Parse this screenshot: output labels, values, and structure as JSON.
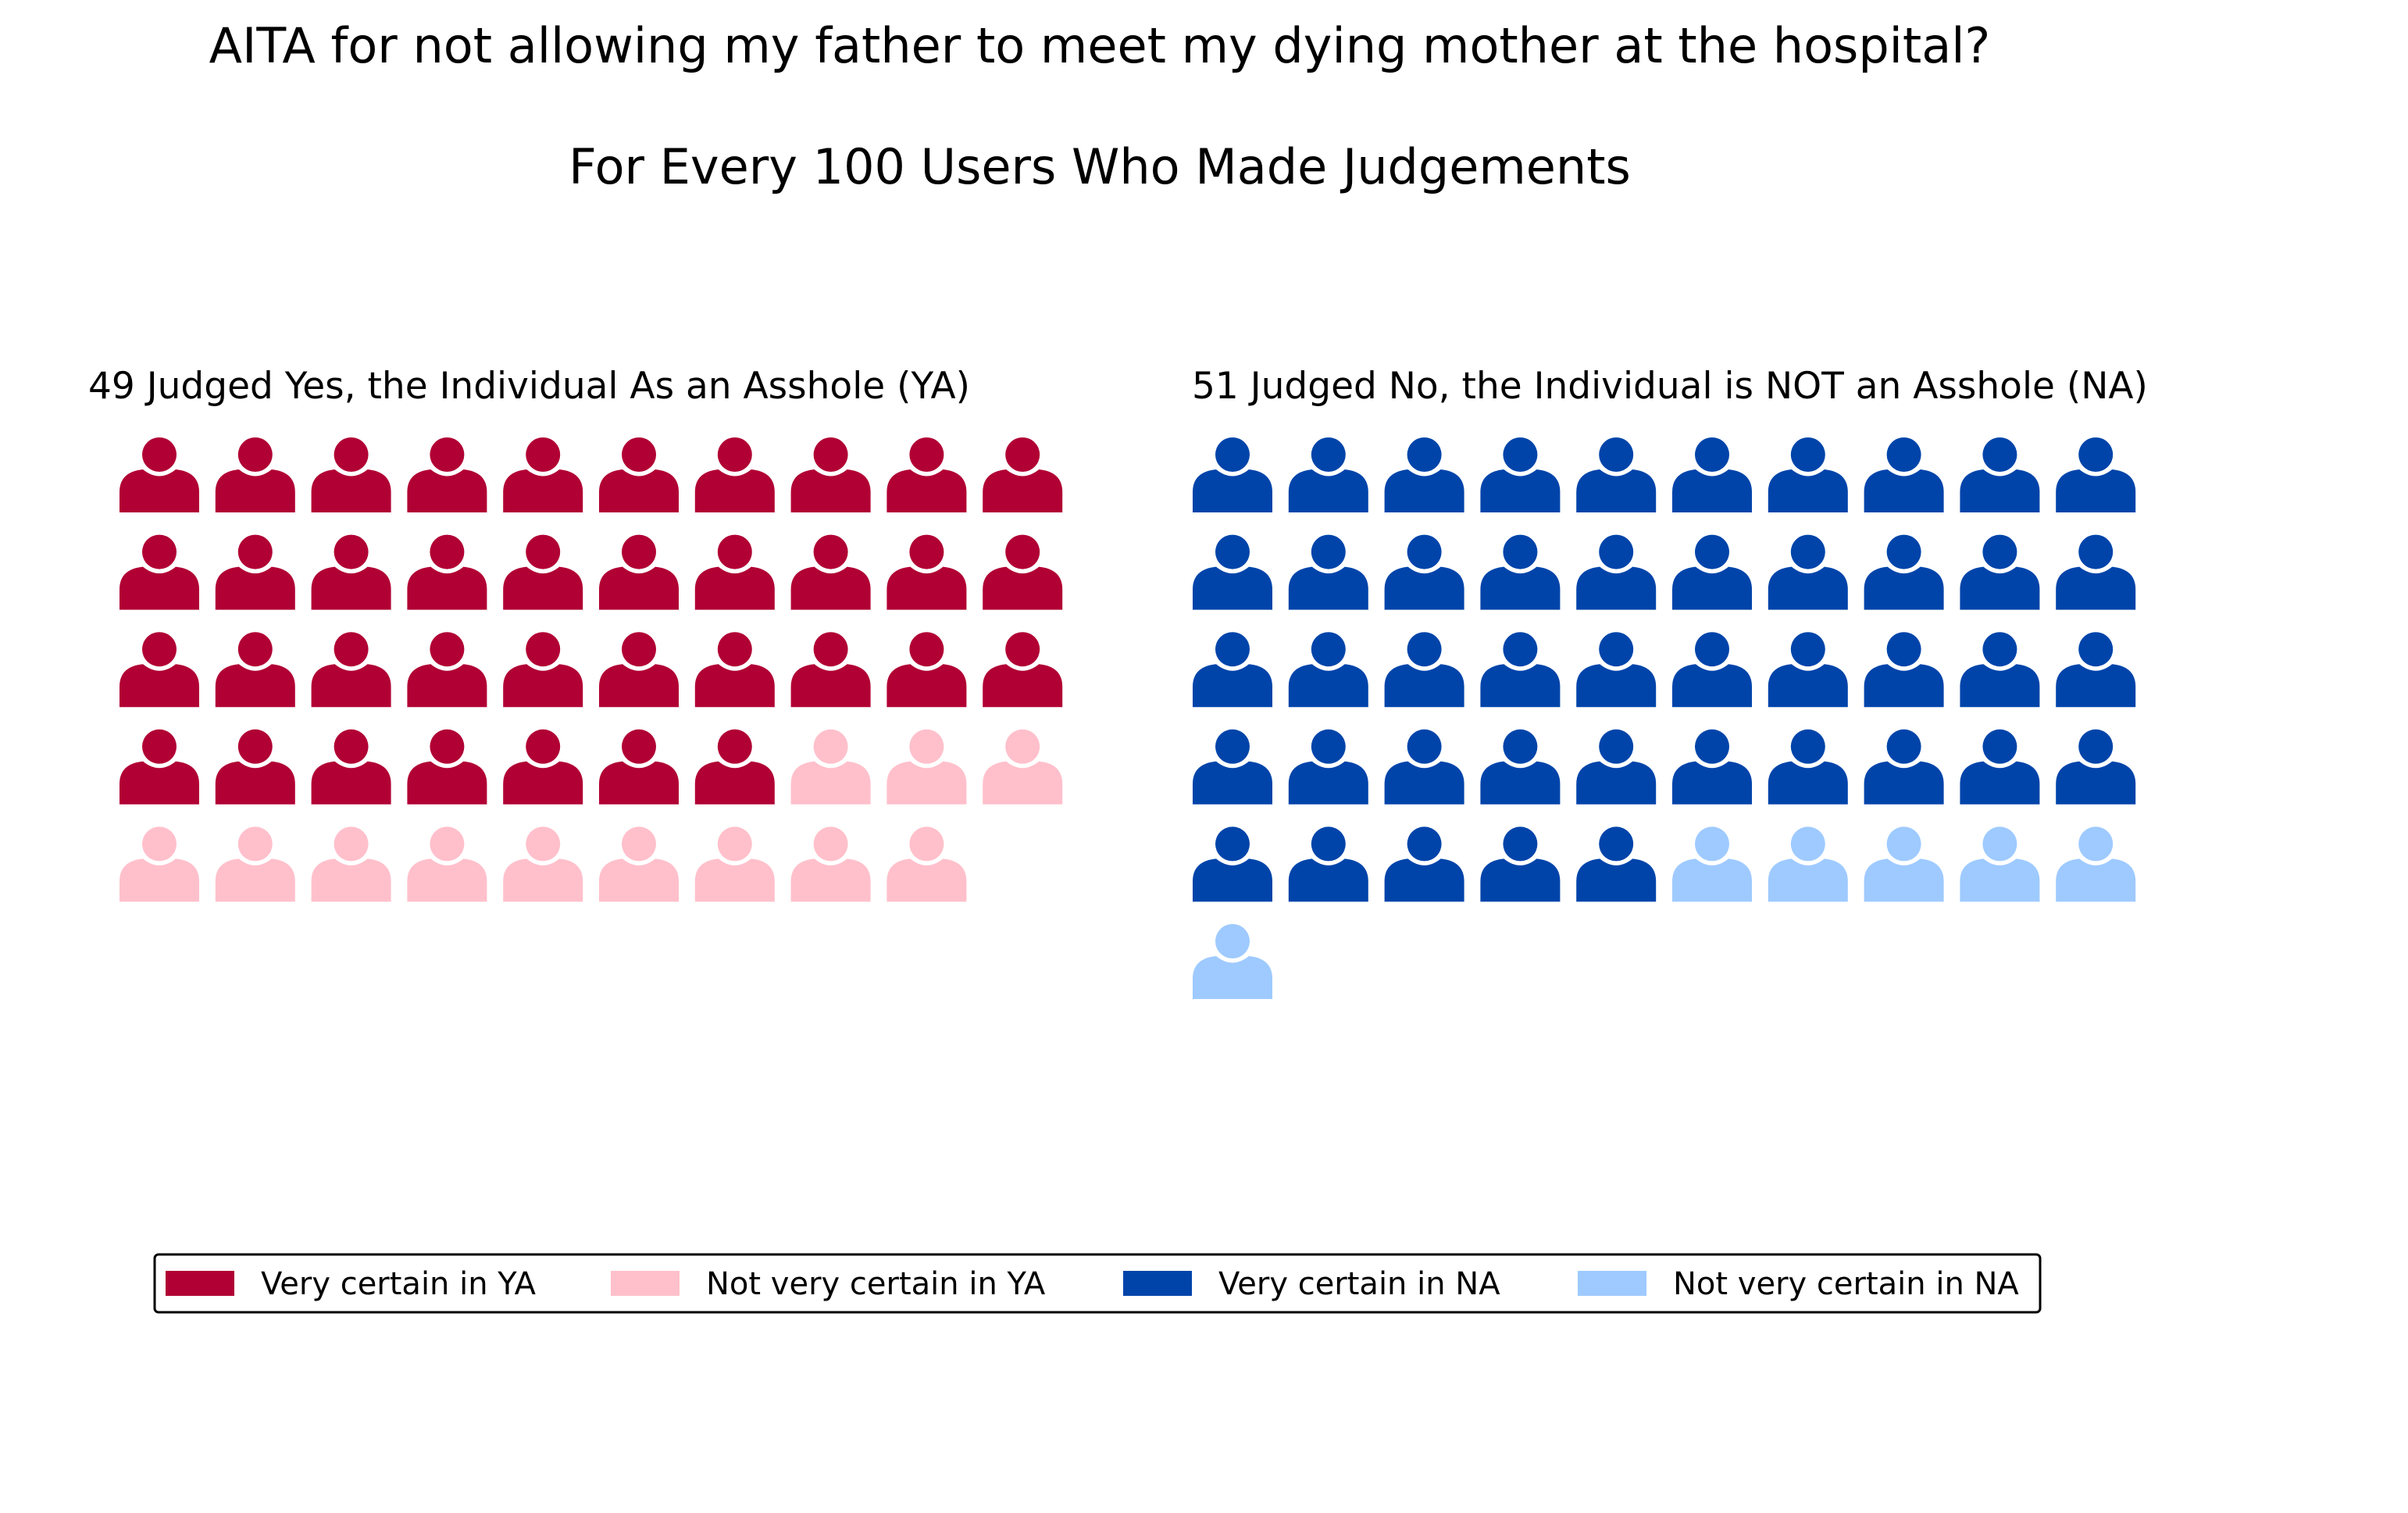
{
  "chart_data": {
    "type": "pictograph",
    "title": "AITA for not allowing my father to meet my dying mother at the hospital?",
    "subtitle": "For Every 100 Users Who Made Judgements",
    "icon": "person-icon",
    "icons_per_row": 10,
    "panels": [
      {
        "id": "ya",
        "title": "49 Judged Yes, the Individual As an Asshole (YA)",
        "groups": [
          {
            "label": "Very certain in YA",
            "count": 37,
            "color": "#b10034"
          },
          {
            "label": "Not very certain in YA",
            "count": 12,
            "color": "#ffc0cb"
          }
        ]
      },
      {
        "id": "na",
        "title": "51 Judged No, the Individual is NOT an Asshole (NA)",
        "groups": [
          {
            "label": "Very certain in NA",
            "count": 45,
            "color": "#0044aa"
          },
          {
            "label": "Not very certain in NA",
            "count": 6,
            "color": "#9ecaff"
          }
        ]
      }
    ],
    "legend": {
      "position": "bottom",
      "items": [
        {
          "label": "Very certain in YA",
          "color": "#b10034"
        },
        {
          "label": "Not very certain in YA",
          "color": "#ffc0cb"
        },
        {
          "label": "Very certain in NA",
          "color": "#0044aa"
        },
        {
          "label": "Not very certain in NA",
          "color": "#9ecaff"
        }
      ]
    }
  }
}
